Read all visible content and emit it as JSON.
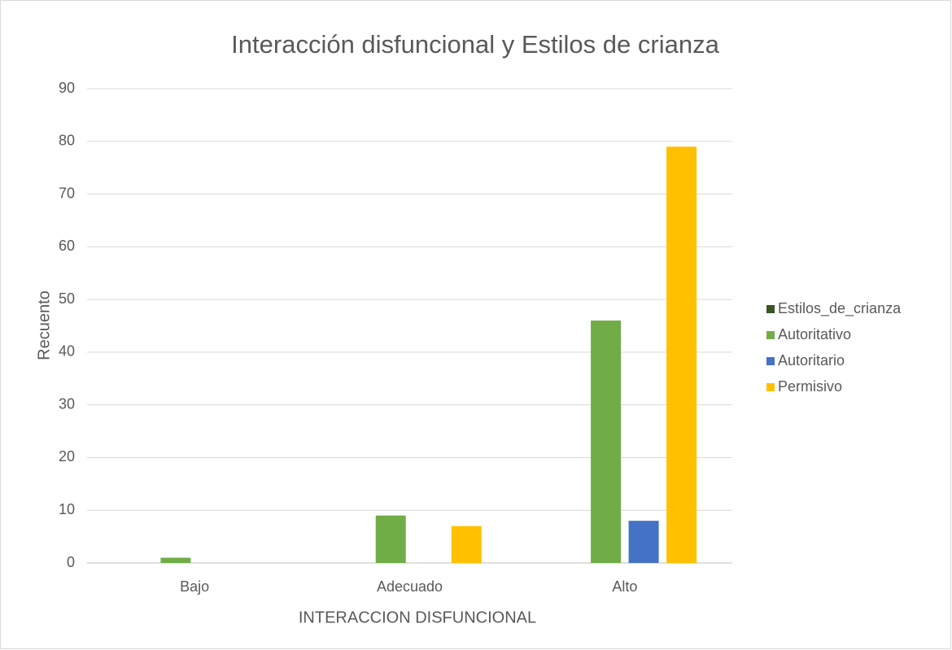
{
  "chart_data": {
    "type": "bar",
    "title": "Interacción disfuncional y Estilos de crianza",
    "x_label": "INTERACCION DISFUNCIONAL",
    "y_label": "Recuento",
    "categories": [
      "Bajo",
      "Adecuado",
      "Alto"
    ],
    "series": [
      {
        "name": "Estilos_de_crianza",
        "color": "#375623",
        "values": [
          null,
          null,
          null
        ]
      },
      {
        "name": "Autoritativo",
        "color": "#70ad47",
        "values": [
          1,
          9,
          46
        ]
      },
      {
        "name": "Autoritario",
        "color": "#4472c4",
        "values": [
          null,
          null,
          8
        ]
      },
      {
        "name": "Permisivo",
        "color": "#ffc000",
        "values": [
          null,
          7,
          79
        ]
      }
    ],
    "ylim": [
      0,
      90
    ],
    "yticks": [
      0,
      10,
      20,
      30,
      40,
      50,
      60,
      70,
      80,
      90
    ],
    "grid": true,
    "legend": "right"
  }
}
